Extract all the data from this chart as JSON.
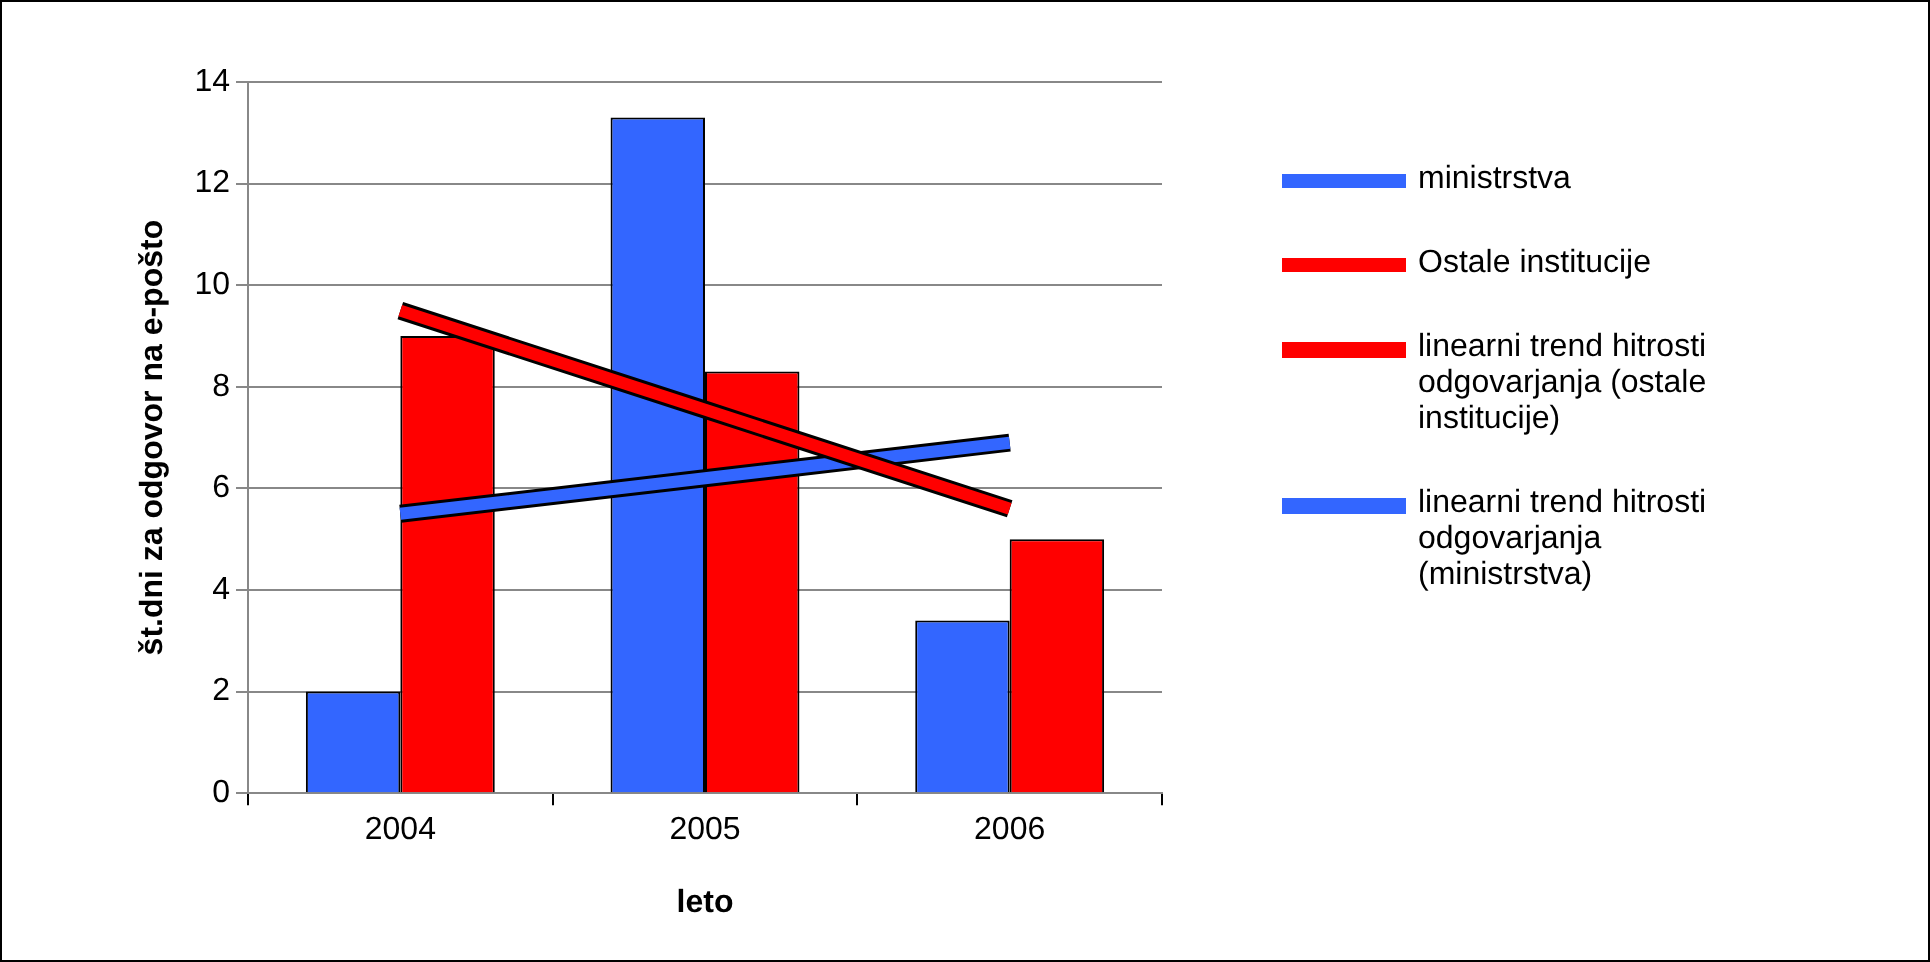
{
  "chart_data": {
    "type": "bar",
    "xlabel": "leto",
    "ylabel": "št.dni za odgovor na e-pošto",
    "categories": [
      "2004",
      "2005",
      "2006"
    ],
    "series": [
      {
        "name": "ministrstva",
        "color": "#3366ff",
        "values": [
          2,
          13.3,
          3.4
        ]
      },
      {
        "name": "Ostale institucije",
        "color": "#ff0000",
        "values": [
          9,
          8.3,
          5
        ]
      },
      {
        "name": "linearni trend hitrosti odgovarjanja (ostale institucije)",
        "type": "line",
        "color": "#ff0000",
        "values": [
          9.5,
          7.55,
          5.6
        ]
      },
      {
        "name": "linearni trend hitrosti odgovarjanja (ministrstva)",
        "type": "line",
        "color": "#3366ff",
        "values": [
          5.5,
          6.2,
          6.9
        ]
      }
    ],
    "ylim": [
      0,
      14
    ],
    "yticks": [
      0,
      2,
      4,
      6,
      8,
      10,
      12,
      14
    ],
    "grid": "y",
    "legend": "right",
    "marker": "none"
  }
}
